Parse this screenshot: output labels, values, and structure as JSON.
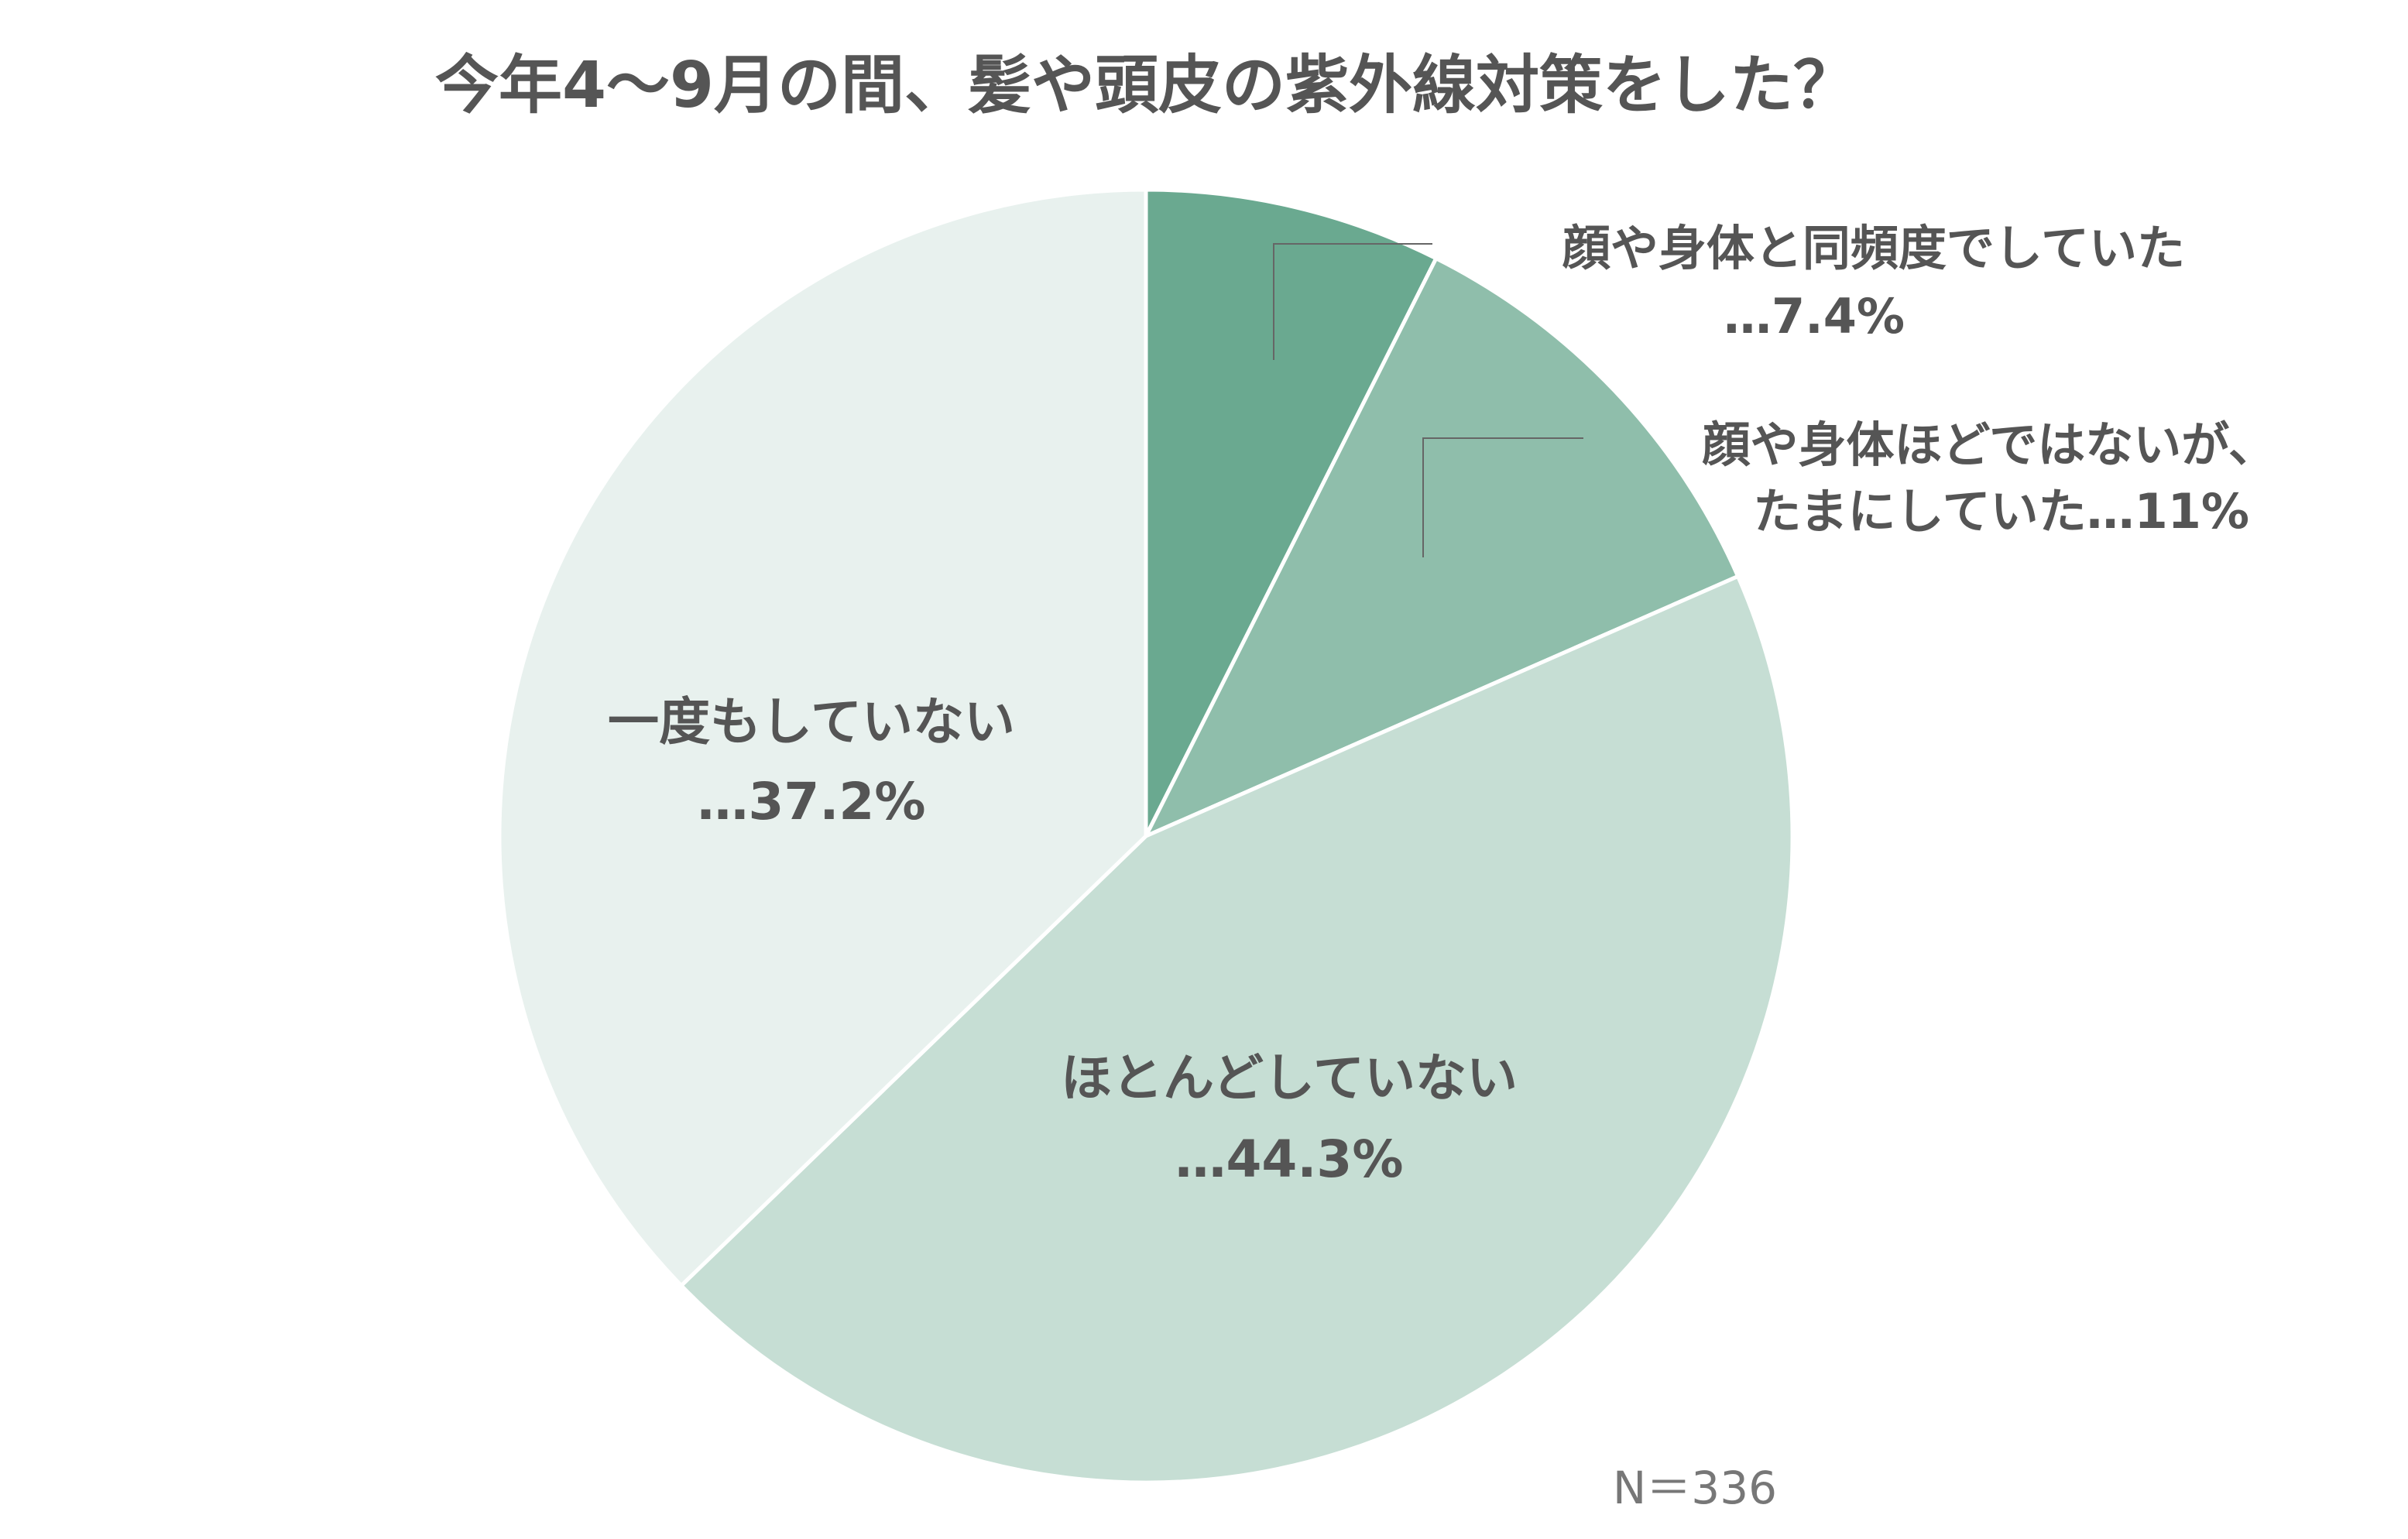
{
  "chart_data": {
    "type": "pie",
    "title": "今年4〜9月の間、髪や頭皮の紫外線対策をした？",
    "slices": [
      {
        "label_lines": [
          "顔や身体と同頻度でしていた",
          "…7.4%"
        ],
        "value": 7.4,
        "color": "#6aa990"
      },
      {
        "label_lines": [
          "顔や身体ほどではないが、",
          "たまにしていた…11%"
        ],
        "value": 11,
        "color": "#8fbeab"
      },
      {
        "label_lines": [
          "ほとんどしていない",
          "…44.3%"
        ],
        "value": 44.3,
        "color": "#c6ded4"
      },
      {
        "label_lines": [
          "一度もしていない",
          "…37.2%"
        ],
        "value": 37.2,
        "color": "#e8f1ee"
      }
    ],
    "start_angle_deg": 0,
    "direction": "clockwise",
    "legend": "none",
    "note": "N＝336"
  }
}
